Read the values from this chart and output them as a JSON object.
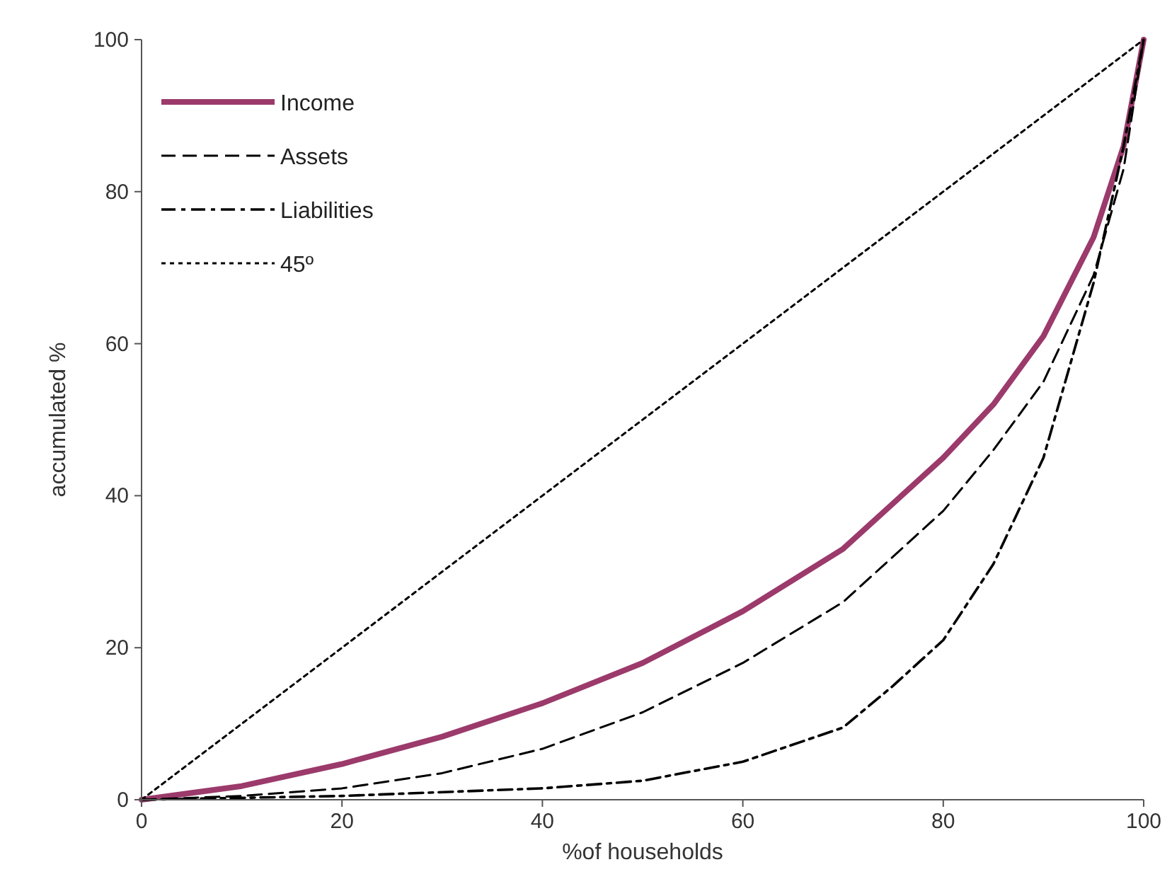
{
  "chart_data": {
    "type": "line",
    "xlabel": "%of households",
    "ylabel": "accumulated %",
    "xlim": [
      0,
      100
    ],
    "ylim": [
      0,
      100
    ],
    "xticks": [
      0,
      20,
      40,
      60,
      80,
      100
    ],
    "yticks": [
      0,
      20,
      40,
      60,
      80,
      100
    ],
    "grid": false,
    "legend": "top left",
    "marker": "none",
    "series": [
      {
        "name": "Income",
        "color": "#9b3a6b",
        "line_style": "solid",
        "x": [
          0,
          10,
          20,
          30,
          40,
          50,
          60,
          70,
          80,
          85,
          90,
          95,
          98,
          100
        ],
        "values": [
          0,
          1.8,
          4.7,
          8.3,
          12.7,
          18,
          24.8,
          33,
          45,
          52,
          61,
          74,
          86,
          100
        ]
      },
      {
        "name": "Assets",
        "color": "#000000",
        "line_style": "dashed",
        "x": [
          0,
          10,
          20,
          30,
          40,
          50,
          60,
          70,
          80,
          85,
          90,
          95,
          98,
          100
        ],
        "values": [
          0,
          0.5,
          1.5,
          3.5,
          6.7,
          11.5,
          18,
          26,
          38,
          46,
          55,
          69,
          83,
          100
        ]
      },
      {
        "name": "Liabilities",
        "color": "#000000",
        "line_style": "dashdot",
        "x": [
          0,
          20,
          40,
          50,
          60,
          70,
          75,
          80,
          85,
          90,
          95,
          98,
          100
        ],
        "values": [
          0,
          0.5,
          1.5,
          2.5,
          5,
          9.5,
          15,
          21,
          31,
          45,
          68,
          86,
          100
        ]
      },
      {
        "name": "45º",
        "color": "#000000",
        "line_style": "dotted",
        "x": [
          0,
          100
        ],
        "values": [
          0,
          100
        ]
      }
    ]
  }
}
